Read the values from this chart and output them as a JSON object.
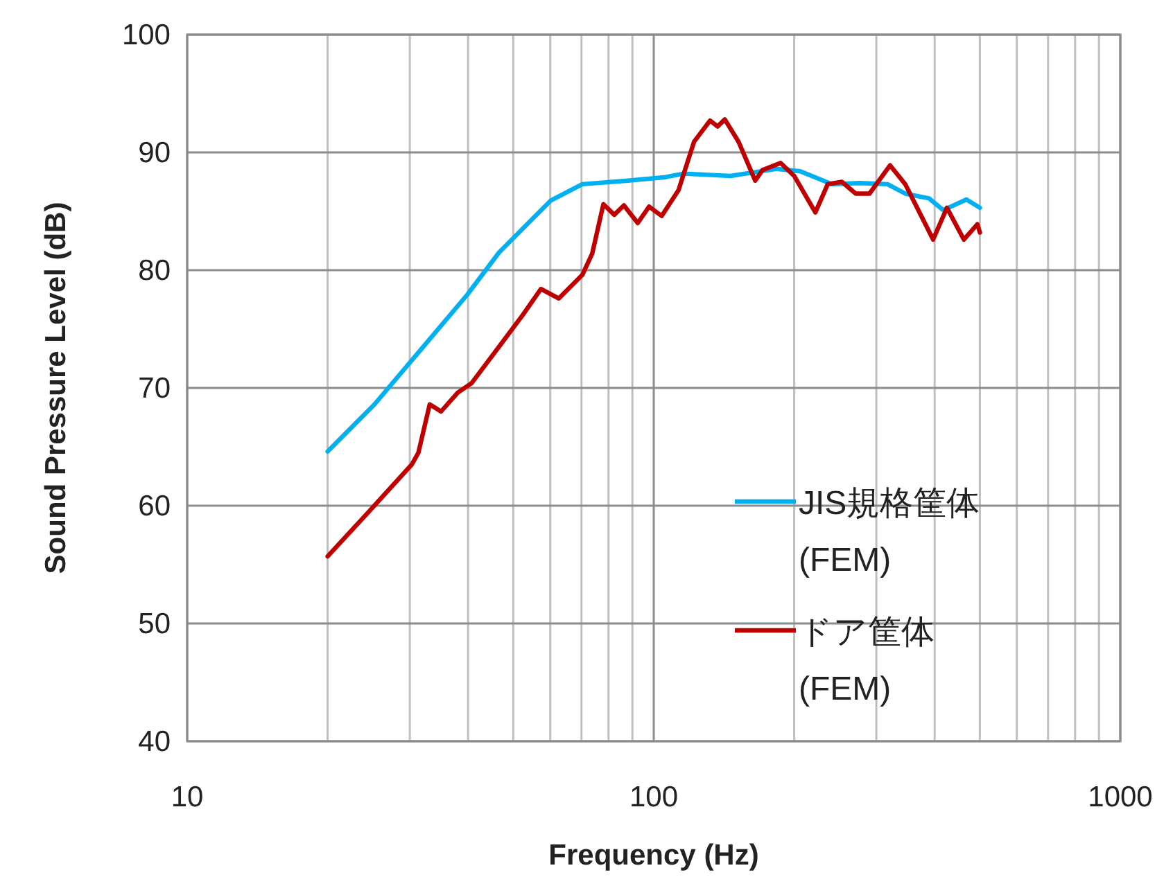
{
  "chart_data": {
    "type": "line",
    "xlabel": "Frequency (Hz)",
    "ylabel": "Sound Pressure Level (dB)",
    "log": "x",
    "xlim": [
      10,
      1000
    ],
    "xticks": [
      10,
      100,
      1000
    ],
    "ylim": [
      40,
      100
    ],
    "yticks": [
      40,
      50,
      60,
      70,
      80,
      90,
      100
    ],
    "grid": true,
    "legend": "bottom right",
    "marker": "none",
    "line_style": "solid",
    "series": [
      {
        "name": "JIS規格筐体\n(FEM)",
        "color": "#00b0f0",
        "x": [
          20,
          25.2,
          31.6,
          39.8,
          46.6,
          60.1,
          70.3,
          88.1,
          106,
          116,
          146,
          183,
          206,
          241,
          276,
          317,
          346,
          389,
          417,
          468,
          500
        ],
        "values": [
          64.6,
          68.6,
          73.2,
          77.9,
          81.5,
          85.9,
          87.3,
          87.6,
          87.9,
          88.2,
          88.0,
          88.6,
          88.4,
          87.3,
          87.4,
          87.3,
          86.5,
          86.1,
          85.1,
          86.0,
          85.3
        ]
      },
      {
        "name": "ドア筐体\n(FEM)",
        "color": "#c00000",
        "x": [
          20,
          24.0,
          30.3,
          31.3,
          33.1,
          35.0,
          38.0,
          40.7,
          46.6,
          52.4,
          57.3,
          62.6,
          70.3,
          73.8,
          78.0,
          82.3,
          86.3,
          92.4,
          97.7,
          104,
          113,
          122,
          132,
          137,
          142,
          152,
          165,
          171,
          187,
          200,
          222,
          236,
          253,
          271,
          290,
          321,
          346,
          397,
          425,
          462,
          494,
          500
        ],
        "values": [
          55.7,
          59.1,
          63.5,
          64.5,
          68.6,
          68.0,
          69.6,
          70.4,
          73.5,
          76.2,
          78.4,
          77.6,
          79.6,
          81.4,
          85.6,
          84.7,
          85.5,
          84.0,
          85.4,
          84.6,
          86.8,
          90.9,
          92.7,
          92.2,
          92.8,
          90.9,
          87.6,
          88.5,
          89.1,
          88.0,
          84.9,
          87.3,
          87.5,
          86.5,
          86.5,
          88.9,
          87.3,
          82.6,
          85.3,
          82.6,
          83.9,
          83.2
        ]
      }
    ]
  }
}
